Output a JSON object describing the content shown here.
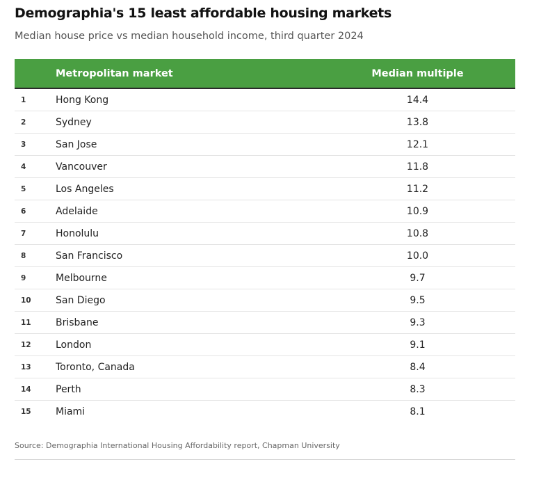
{
  "chart_data": {
    "type": "table",
    "title": "Demographia's 15 least affordable housing markets",
    "subtitle": "Median house price vs median household income, third quarter 2024",
    "columns": [
      "",
      "Metropolitan market",
      "Median multiple"
    ],
    "rows": [
      {
        "rank": "1",
        "market": "Hong Kong",
        "value": "14.4"
      },
      {
        "rank": "2",
        "market": "Sydney",
        "value": "13.8"
      },
      {
        "rank": "3",
        "market": "San Jose",
        "value": "12.1"
      },
      {
        "rank": "4",
        "market": "Vancouver",
        "value": "11.8"
      },
      {
        "rank": "5",
        "market": "Los Angeles",
        "value": "11.2"
      },
      {
        "rank": "6",
        "market": "Adelaide",
        "value": "10.9"
      },
      {
        "rank": "7",
        "market": "Honolulu",
        "value": "10.8"
      },
      {
        "rank": "8",
        "market": "San Francisco",
        "value": "10.0"
      },
      {
        "rank": "9",
        "market": "Melbourne",
        "value": "9.7"
      },
      {
        "rank": "10",
        "market": "San Diego",
        "value": "9.5"
      },
      {
        "rank": "11",
        "market": "Brisbane",
        "value": "9.3"
      },
      {
        "rank": "12",
        "market": "London",
        "value": "9.1"
      },
      {
        "rank": "13",
        "market": "Toronto, Canada",
        "value": "8.4"
      },
      {
        "rank": "14",
        "market": "Perth",
        "value": "8.3"
      },
      {
        "rank": "15",
        "market": "Miami",
        "value": "8.1"
      }
    ],
    "source": "Source: Demographia International Housing Affordability report, Chapman University"
  },
  "colors": {
    "header_background": "#4a9f42",
    "header_text": "#ffffff"
  }
}
